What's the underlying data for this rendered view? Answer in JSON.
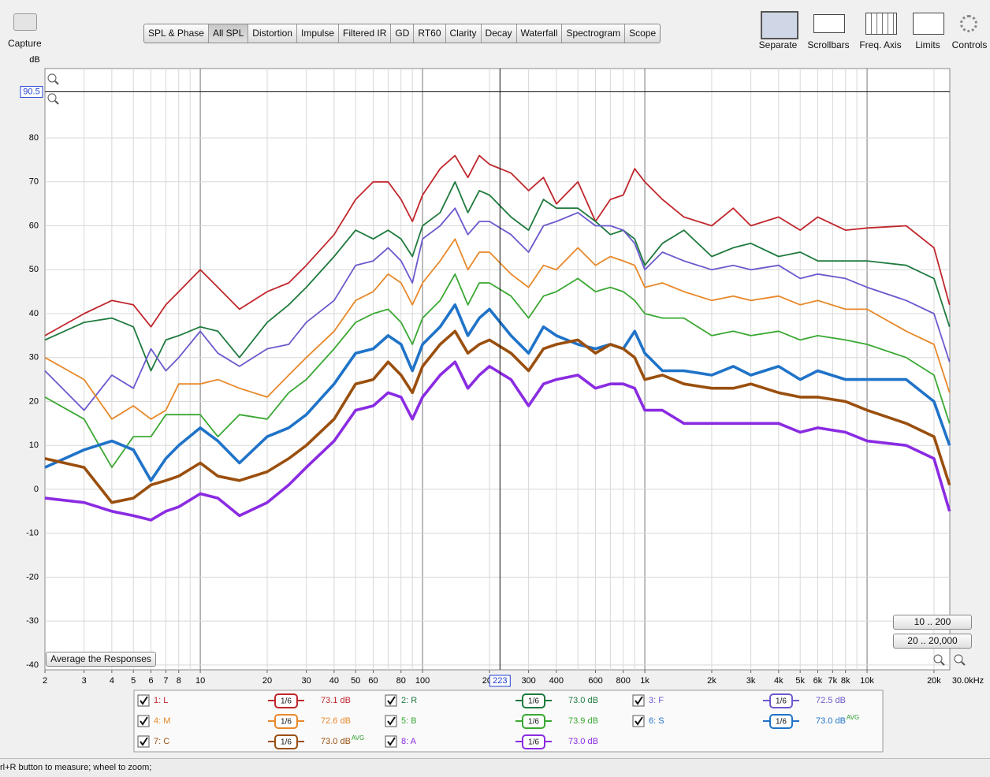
{
  "capture": "Capture",
  "toolbar": {
    "tabs": [
      "SPL & Phase",
      "All SPL",
      "Distortion",
      "Impulse",
      "Filtered IR",
      "GD",
      "RT60",
      "Clarity",
      "Decay",
      "Waterfall",
      "Spectrogram",
      "Scope"
    ],
    "selected": 1
  },
  "tools": [
    "Separate",
    "Scrollbars",
    "Freq. Axis",
    "Limits",
    "Controls"
  ],
  "buttons": {
    "range1": "10 .. 200",
    "range2": "20 .. 20,000",
    "average": "Average the Responses"
  },
  "status": "rl+R button to measure; wheel to zoom;",
  "chart_data": {
    "type": "line",
    "ylabel": "dB",
    "x_end_label": "30.0kHz",
    "xscale": "log",
    "grid": true,
    "xlim": [
      2,
      23560
    ],
    "ylim": [
      -41.1,
      95.8
    ],
    "xticks": [
      2,
      3,
      4,
      5,
      6,
      7,
      8,
      10,
      20,
      30,
      40,
      50,
      60,
      80,
      100,
      200,
      300,
      400,
      600,
      800,
      {
        "value": 1000,
        "label": "1k"
      },
      {
        "value": 2000,
        "label": "2k"
      },
      {
        "value": 3000,
        "label": "3k"
      },
      {
        "value": 4000,
        "label": "4k"
      },
      {
        "value": 5000,
        "label": "5k"
      },
      {
        "value": 6000,
        "label": "6k"
      },
      {
        "value": 7000,
        "label": "7k"
      },
      {
        "value": 8000,
        "label": "8k"
      },
      {
        "value": 10000,
        "label": "10k"
      },
      {
        "value": 20000,
        "label": "20k"
      }
    ],
    "yticks": [
      -40,
      -30,
      -20,
      -10,
      0,
      10,
      20,
      30,
      40,
      50,
      60,
      70,
      80
    ],
    "cursor": {
      "x": 223,
      "y": 90.5
    },
    "x": [
      2,
      3,
      4,
      5,
      6,
      7,
      8,
      10,
      12,
      15,
      20,
      25,
      30,
      40,
      50,
      60,
      70,
      80,
      90,
      100,
      120,
      140,
      160,
      180,
      200,
      250,
      300,
      350,
      400,
      500,
      600,
      700,
      800,
      900,
      1000,
      1200,
      1500,
      2000,
      2500,
      3000,
      4000,
      5000,
      6000,
      8000,
      10000,
      15000,
      20000,
      23500
    ],
    "series": [
      {
        "name": "1: L",
        "color": "#c0272d",
        "thick": false,
        "smoothing": "1/6",
        "level": "73.1 dB",
        "values": [
          35,
          40,
          43,
          42,
          37,
          42,
          45,
          50,
          46,
          41,
          45,
          47,
          51,
          58,
          66,
          70,
          70,
          66,
          61,
          67,
          73,
          76,
          71,
          76,
          74,
          72,
          68,
          71,
          65,
          70,
          61,
          66,
          67,
          73,
          70,
          66,
          62,
          60,
          64,
          60,
          62,
          59,
          62,
          59,
          59.5,
          60,
          55,
          42
        ]
      },
      {
        "name": "2: R",
        "color": "#1f7a3e",
        "thick": false,
        "smoothing": "1/6",
        "level": "73.0 dB",
        "values": [
          34,
          38,
          39,
          37,
          27,
          34,
          35,
          37,
          36,
          30,
          38,
          42,
          46,
          53,
          59,
          57,
          59,
          57,
          53,
          60,
          63,
          70,
          63,
          68,
          67,
          62,
          59,
          66,
          64,
          64,
          61,
          58,
          59,
          57,
          51,
          56,
          59,
          53,
          55,
          56,
          53,
          54,
          52,
          52,
          52,
          51,
          48,
          37
        ]
      },
      {
        "name": "3: F",
        "color": "#6a5acd",
        "thick": false,
        "smoothing": "1/6",
        "level": "72.5 dB",
        "values": [
          27,
          18,
          26,
          23,
          32,
          27,
          30,
          36,
          31,
          28,
          32,
          33,
          38,
          43,
          51,
          52,
          55,
          52,
          47,
          57,
          60,
          64,
          58,
          61,
          61,
          58,
          54,
          60,
          61,
          63,
          60,
          60,
          59,
          56,
          50,
          54,
          52,
          50,
          51,
          50,
          51,
          48,
          49,
          48,
          46,
          43,
          40,
          29
        ]
      },
      {
        "name": "4: M",
        "color": "#e8882a",
        "thick": false,
        "smoothing": "1/6",
        "level": "72.6 dB",
        "values": [
          30,
          25,
          16,
          19,
          16,
          18,
          24,
          24,
          25,
          23,
          21,
          26,
          30,
          36,
          43,
          45,
          49,
          47,
          42,
          47,
          52,
          57,
          50,
          54,
          54,
          49,
          46,
          51,
          50,
          55,
          51,
          53,
          52,
          51,
          46,
          47,
          45,
          43,
          44,
          43,
          44,
          42,
          43,
          41,
          41,
          36,
          33,
          22
        ]
      },
      {
        "name": "5: B",
        "color": "#3aa832",
        "thick": false,
        "smoothing": "1/6",
        "level": "73.9 dB",
        "values": [
          21,
          16,
          5,
          12,
          12,
          17,
          17,
          17,
          12,
          17,
          16,
          22,
          25,
          32,
          38,
          40,
          41,
          38,
          33,
          39,
          43,
          49,
          42,
          47,
          47,
          44,
          39,
          44,
          45,
          48,
          45,
          46,
          45,
          43,
          40,
          39,
          39,
          35,
          36,
          35,
          36,
          34,
          35,
          34,
          33,
          30,
          26,
          15
        ]
      },
      {
        "name": "6: S",
        "color": "#1f73c8",
        "thick": true,
        "smoothing": "1/6",
        "level": "73.0 dB",
        "tag": "AVG",
        "values": [
          5,
          9,
          11,
          9,
          2,
          7,
          10,
          14,
          11,
          6,
          12,
          14,
          17,
          24,
          31,
          32,
          35,
          33,
          27,
          33,
          37,
          42,
          35,
          39,
          41,
          35,
          31,
          37,
          35,
          33,
          32,
          33,
          32,
          36,
          31,
          27,
          27,
          26,
          28,
          26,
          28,
          25,
          27,
          25,
          25,
          25,
          20,
          10
        ]
      },
      {
        "name": "7: C",
        "color": "#9a4f0e",
        "thick": true,
        "smoothing": "1/6",
        "level": "73.0 dB",
        "tag": "AVG",
        "values": [
          7,
          5,
          -3,
          -2,
          1,
          2,
          3,
          6,
          3,
          2,
          4,
          7,
          10,
          16,
          24,
          25,
          29,
          26,
          22,
          28,
          33,
          36,
          31,
          33,
          34,
          31,
          27,
          32,
          33,
          34,
          31,
          33,
          32,
          30,
          25,
          26,
          24,
          23,
          23,
          24,
          22,
          21,
          21,
          20,
          18,
          15,
          12,
          1
        ]
      },
      {
        "name": "8: A",
        "color": "#8a2be2",
        "thick": true,
        "smoothing": "1/6",
        "level": "73.0 dB",
        "values": [
          -2,
          -3,
          -5,
          -6,
          -7,
          -5,
          -4,
          -1,
          -2,
          -6,
          -3,
          1,
          5,
          11,
          18,
          19,
          22,
          21,
          16,
          21,
          26,
          29,
          23,
          26,
          28,
          25,
          19,
          24,
          25,
          26,
          23,
          24,
          24,
          23,
          18,
          18,
          15,
          15,
          15,
          15,
          15,
          13,
          14,
          13,
          11,
          10,
          7,
          -5
        ]
      }
    ]
  }
}
